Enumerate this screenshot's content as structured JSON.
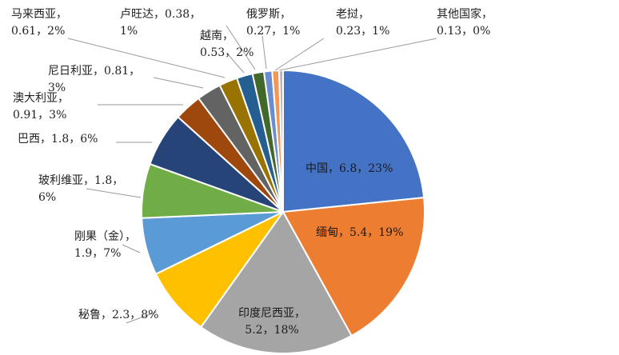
{
  "chart_data": {
    "type": "pie",
    "title": "",
    "slices": [
      {
        "name": "中国",
        "value": 6.8,
        "value_label": "6.8",
        "percent": "23%",
        "color": "#4472C4"
      },
      {
        "name": "缅甸",
        "value": 5.4,
        "value_label": "5.4",
        "percent": "19%",
        "color": "#ED7D31"
      },
      {
        "name": "印度尼西亚",
        "value": 5.2,
        "value_label": "5.2",
        "percent": "18%",
        "color": "#A5A5A5"
      },
      {
        "name": "秘鲁",
        "value": 2.3,
        "value_label": "2.3",
        "percent": "8%",
        "color": "#FFC000"
      },
      {
        "name": "刚果（金）",
        "value": 1.9,
        "value_label": "1.9",
        "percent": "7%",
        "color": "#5B9BD5"
      },
      {
        "name": "玻利维亚",
        "value": 1.8,
        "value_label": "1.8",
        "percent": "6%",
        "color": "#70AD47"
      },
      {
        "name": "巴西",
        "value": 1.8,
        "value_label": "1.8",
        "percent": "6%",
        "color": "#264478"
      },
      {
        "name": "澳大利亚",
        "value": 0.91,
        "value_label": "0.91",
        "percent": "3%",
        "color": "#9E480E"
      },
      {
        "name": "尼日利亚",
        "value": 0.81,
        "value_label": "0.81",
        "percent": "3%",
        "color": "#636363"
      },
      {
        "name": "马来西亚",
        "value": 0.61,
        "value_label": "0.61",
        "percent": "2%",
        "color": "#997300"
      },
      {
        "name": "越南",
        "value": 0.53,
        "value_label": "0.53",
        "percent": "2%",
        "color": "#255E91"
      },
      {
        "name": "卢旺达",
        "value": 0.38,
        "value_label": "0.38",
        "percent": "1%",
        "color": "#43682B"
      },
      {
        "name": "俄罗斯",
        "value": 0.27,
        "value_label": "0.27",
        "percent": "1%",
        "color": "#698ED0"
      },
      {
        "name": "老挝",
        "value": 0.23,
        "value_label": "0.23",
        "percent": "1%",
        "color": "#F1975A"
      },
      {
        "name": "其他国家",
        "value": 0.13,
        "value_label": "0.13",
        "percent": "0%",
        "color": "#B7B7B7"
      }
    ],
    "data_labels": [
      {
        "lines": [
          "中国，6.8，23%"
        ]
      },
      {
        "lines": [
          "缅甸，5.4，19%"
        ]
      },
      {
        "lines": [
          "印度尼西亚，",
          "5.2，18%"
        ]
      },
      {
        "lines": [
          "秘鲁，2.3，8%"
        ]
      },
      {
        "lines": [
          "刚果（金），",
          "1.9，7%"
        ]
      },
      {
        "lines": [
          "玻利维亚，1.8，",
          "6%"
        ]
      },
      {
        "lines": [
          "巴西，1.8，6%"
        ]
      },
      {
        "lines": [
          "澳大利亚，",
          "0.91，3%"
        ]
      },
      {
        "lines": [
          "尼日利亚，0.81，",
          "3%"
        ]
      },
      {
        "lines": [
          "马来西亚，",
          "0.61，2%"
        ]
      },
      {
        "lines": [
          "越南，",
          "0.53，2%"
        ]
      },
      {
        "lines": [
          "卢旺达，0.38，",
          "1%"
        ]
      },
      {
        "lines": [
          "俄罗斯，",
          "0.27，1%"
        ]
      },
      {
        "lines": [
          "老挝，",
          "0.23，1%"
        ]
      },
      {
        "lines": [
          "其他国家，",
          "0.13，0%"
        ]
      }
    ],
    "legend": "none"
  }
}
